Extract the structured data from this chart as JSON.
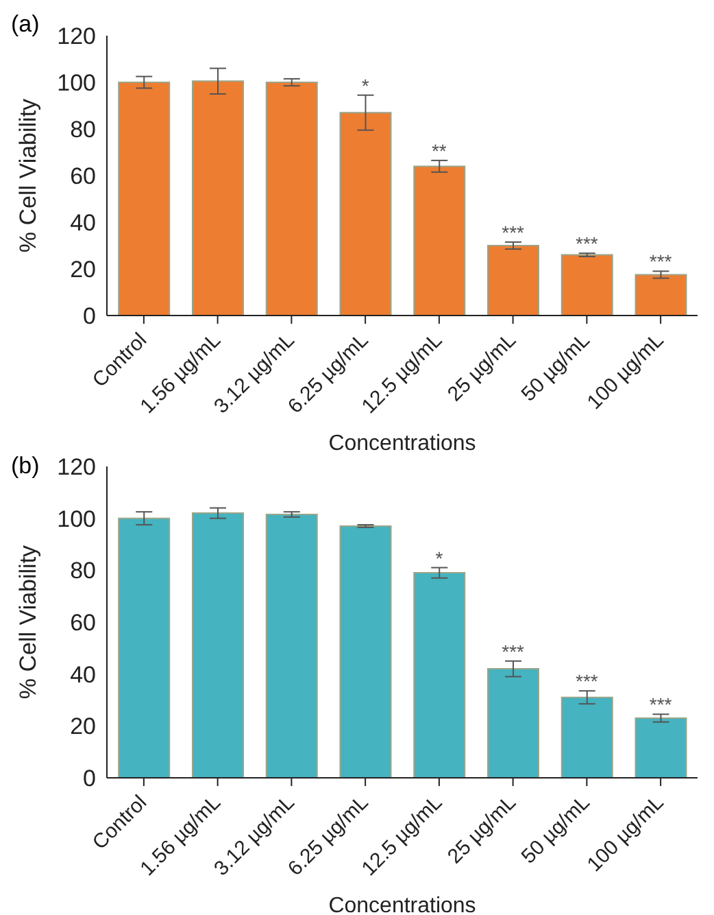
{
  "chart_data": [
    {
      "type": "bar",
      "title": "(a)",
      "xlabel": "Concentrations",
      "ylabel": "% Cell Viability",
      "categories": [
        "Control",
        "1.56 µg/mL",
        "3.12 µg/mL",
        "6.25 µg/mL",
        "12.5 µg/mL",
        "25 µg/mL",
        "50 µg/mL",
        "100 µg/mL"
      ],
      "values": [
        100,
        100.5,
        100,
        87,
        64,
        30,
        26,
        17.5
      ],
      "errors": [
        2.5,
        5.5,
        1.5,
        7.5,
        2.5,
        1.5,
        0.7,
        1.5
      ],
      "color": "#ed7d31",
      "ylim": [
        0,
        120
      ],
      "yticks": [
        0,
        20,
        40,
        60,
        80,
        100,
        120
      ],
      "annotations": [
        {
          "text": "*",
          "x": "6.25 µg/mL",
          "y": 94.5
        },
        {
          "text": "**",
          "x": "12.5 µg/mL",
          "y": 66.5
        },
        {
          "text": "***",
          "x": "25 µg/mL",
          "y": 31.5
        },
        {
          "text": "***",
          "x": "50 µg/mL",
          "y": 26.7
        },
        {
          "text": "***",
          "x": "100 µg/mL",
          "y": 19
        }
      ]
    },
    {
      "type": "bar",
      "title": "(b)",
      "xlabel": "Concentrations",
      "ylabel": "% Cell Viability",
      "categories": [
        "Control",
        "1.56 µg/mL",
        "3.12 µg/mL",
        "6.25 µg/mL",
        "12.5 µg/mL",
        "25 µg/mL",
        "50 µg/mL",
        "100 µg/mL"
      ],
      "values": [
        100,
        102,
        101.5,
        97,
        79,
        42,
        31,
        23
      ],
      "errors": [
        2.5,
        2,
        1,
        0.5,
        2,
        3,
        2.5,
        1.5
      ],
      "color": "#45b3c0",
      "ylim": [
        0,
        120
      ],
      "yticks": [
        0,
        20,
        40,
        60,
        80,
        100,
        120
      ],
      "annotations": [
        {
          "text": "*",
          "x": "12.5 µg/mL",
          "y": 81
        },
        {
          "text": "***",
          "x": "25 µg/mL",
          "y": 45
        },
        {
          "text": "***",
          "x": "50 µg/mL",
          "y": 33.5
        },
        {
          "text": "***",
          "x": "100 µg/mL",
          "y": 24.5
        }
      ]
    }
  ]
}
